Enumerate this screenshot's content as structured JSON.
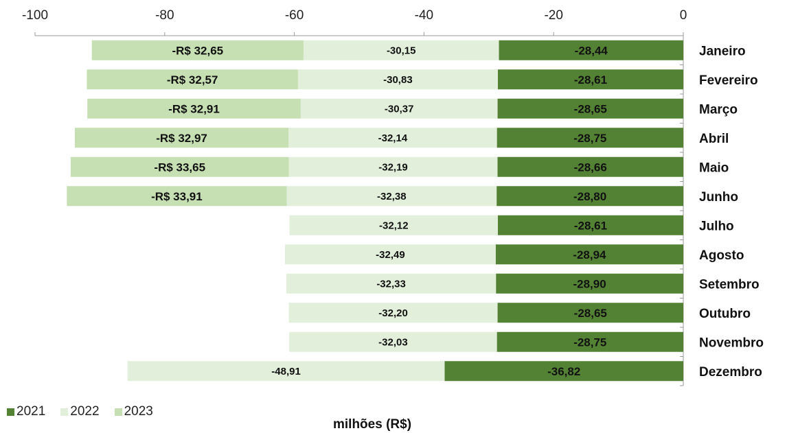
{
  "chart_data": {
    "type": "bar",
    "orientation": "horizontal",
    "stacked": true,
    "title": "",
    "xlabel": "milhões (R$)",
    "ylabel": "",
    "xlim": [
      -100,
      0
    ],
    "xticks": [
      "-100",
      "-80",
      "-60",
      "-40",
      "-20",
      "0"
    ],
    "tick_values": [
      -100,
      -80,
      -60,
      -40,
      -20,
      0
    ],
    "axis_position": "top",
    "category_axis_position": "right",
    "grid": false,
    "legend": "bottom-left",
    "categories": [
      "Janeiro",
      "Fevereiro",
      "Março",
      "Abril",
      "Maio",
      "Junho",
      "Julho",
      "Agosto",
      "Setembro",
      "Outubro",
      "Novembro",
      "Dezembro"
    ],
    "series": [
      {
        "name": "2021",
        "color": "#548235",
        "values": [
          -28.44,
          -28.61,
          -28.65,
          -28.75,
          -28.66,
          -28.8,
          -28.61,
          -28.94,
          -28.9,
          -28.65,
          -28.75,
          -36.82
        ],
        "labels": [
          "-28,44",
          "-28,61",
          "-28,65",
          "-28,75",
          "-28,66",
          "-28,80",
          "-28,61",
          "-28,94",
          "-28,90",
          "-28,65",
          "-28,75",
          "-36,82"
        ]
      },
      {
        "name": "2022",
        "color": "#e2efda",
        "values": [
          -30.15,
          -30.83,
          -30.37,
          -32.14,
          -32.19,
          -32.38,
          -32.12,
          -32.49,
          -32.33,
          -32.2,
          -32.03,
          -48.91
        ],
        "labels": [
          "-30,15",
          "-30,83",
          "-30,37",
          "-32,14",
          "-32,19",
          "-32,38",
          "-32,12",
          "-32,49",
          "-32,33",
          "-32,20",
          "-32,03",
          "-48,91"
        ]
      },
      {
        "name": "2023",
        "color": "#c6e0b4",
        "values": [
          -32.65,
          -32.57,
          -32.91,
          -32.97,
          -33.65,
          -33.91,
          null,
          null,
          null,
          null,
          null,
          null
        ],
        "labels": [
          "-R$ 32,65",
          "-R$ 32,57",
          "-R$ 32,91",
          "-R$ 32,97",
          "-R$ 33,65",
          "-R$ 33,91",
          "",
          "",
          "",
          "",
          "",
          ""
        ]
      }
    ]
  }
}
